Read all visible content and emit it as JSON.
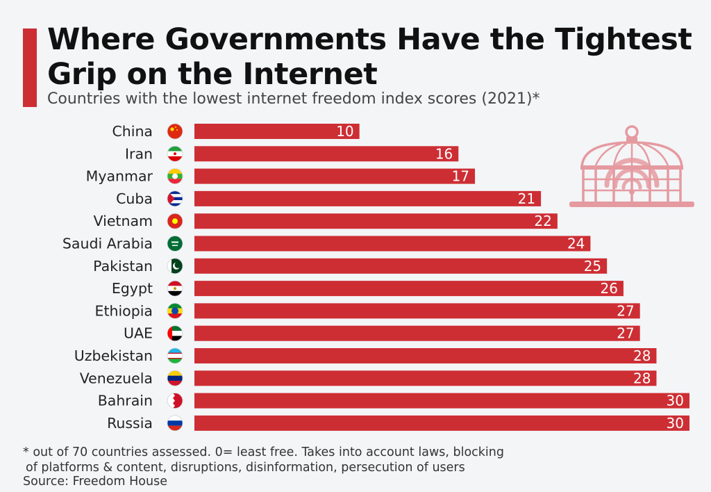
{
  "title": "Where Governments Have the Tightest Grip on the Internet",
  "subtitle": "Countries with the lowest internet freedom index scores (2021)*",
  "footnote_line1": "* out of 70 countries assessed. 0= least free. Takes into account laws, blocking",
  "footnote_line2": "of platforms & content, disruptions, disinformation, persecution of users",
  "source": "Source: Freedom House",
  "colors": {
    "bar": "#cd2e34",
    "accent": "#cd2e34",
    "cage": "#e59aa0"
  },
  "chart_data": {
    "type": "bar",
    "orientation": "horizontal",
    "categories": [
      "China",
      "Iran",
      "Myanmar",
      "Cuba",
      "Vietnam",
      "Saudi Arabia",
      "Pakistan",
      "Egypt",
      "Ethiopia",
      "UAE",
      "Uzbekistan",
      "Venezuela",
      "Bahrain",
      "Russia"
    ],
    "values": [
      10,
      16,
      17,
      21,
      22,
      24,
      25,
      26,
      27,
      27,
      28,
      28,
      30,
      30
    ],
    "xlim": [
      0,
      30
    ],
    "grid": false,
    "data_labels": true
  }
}
